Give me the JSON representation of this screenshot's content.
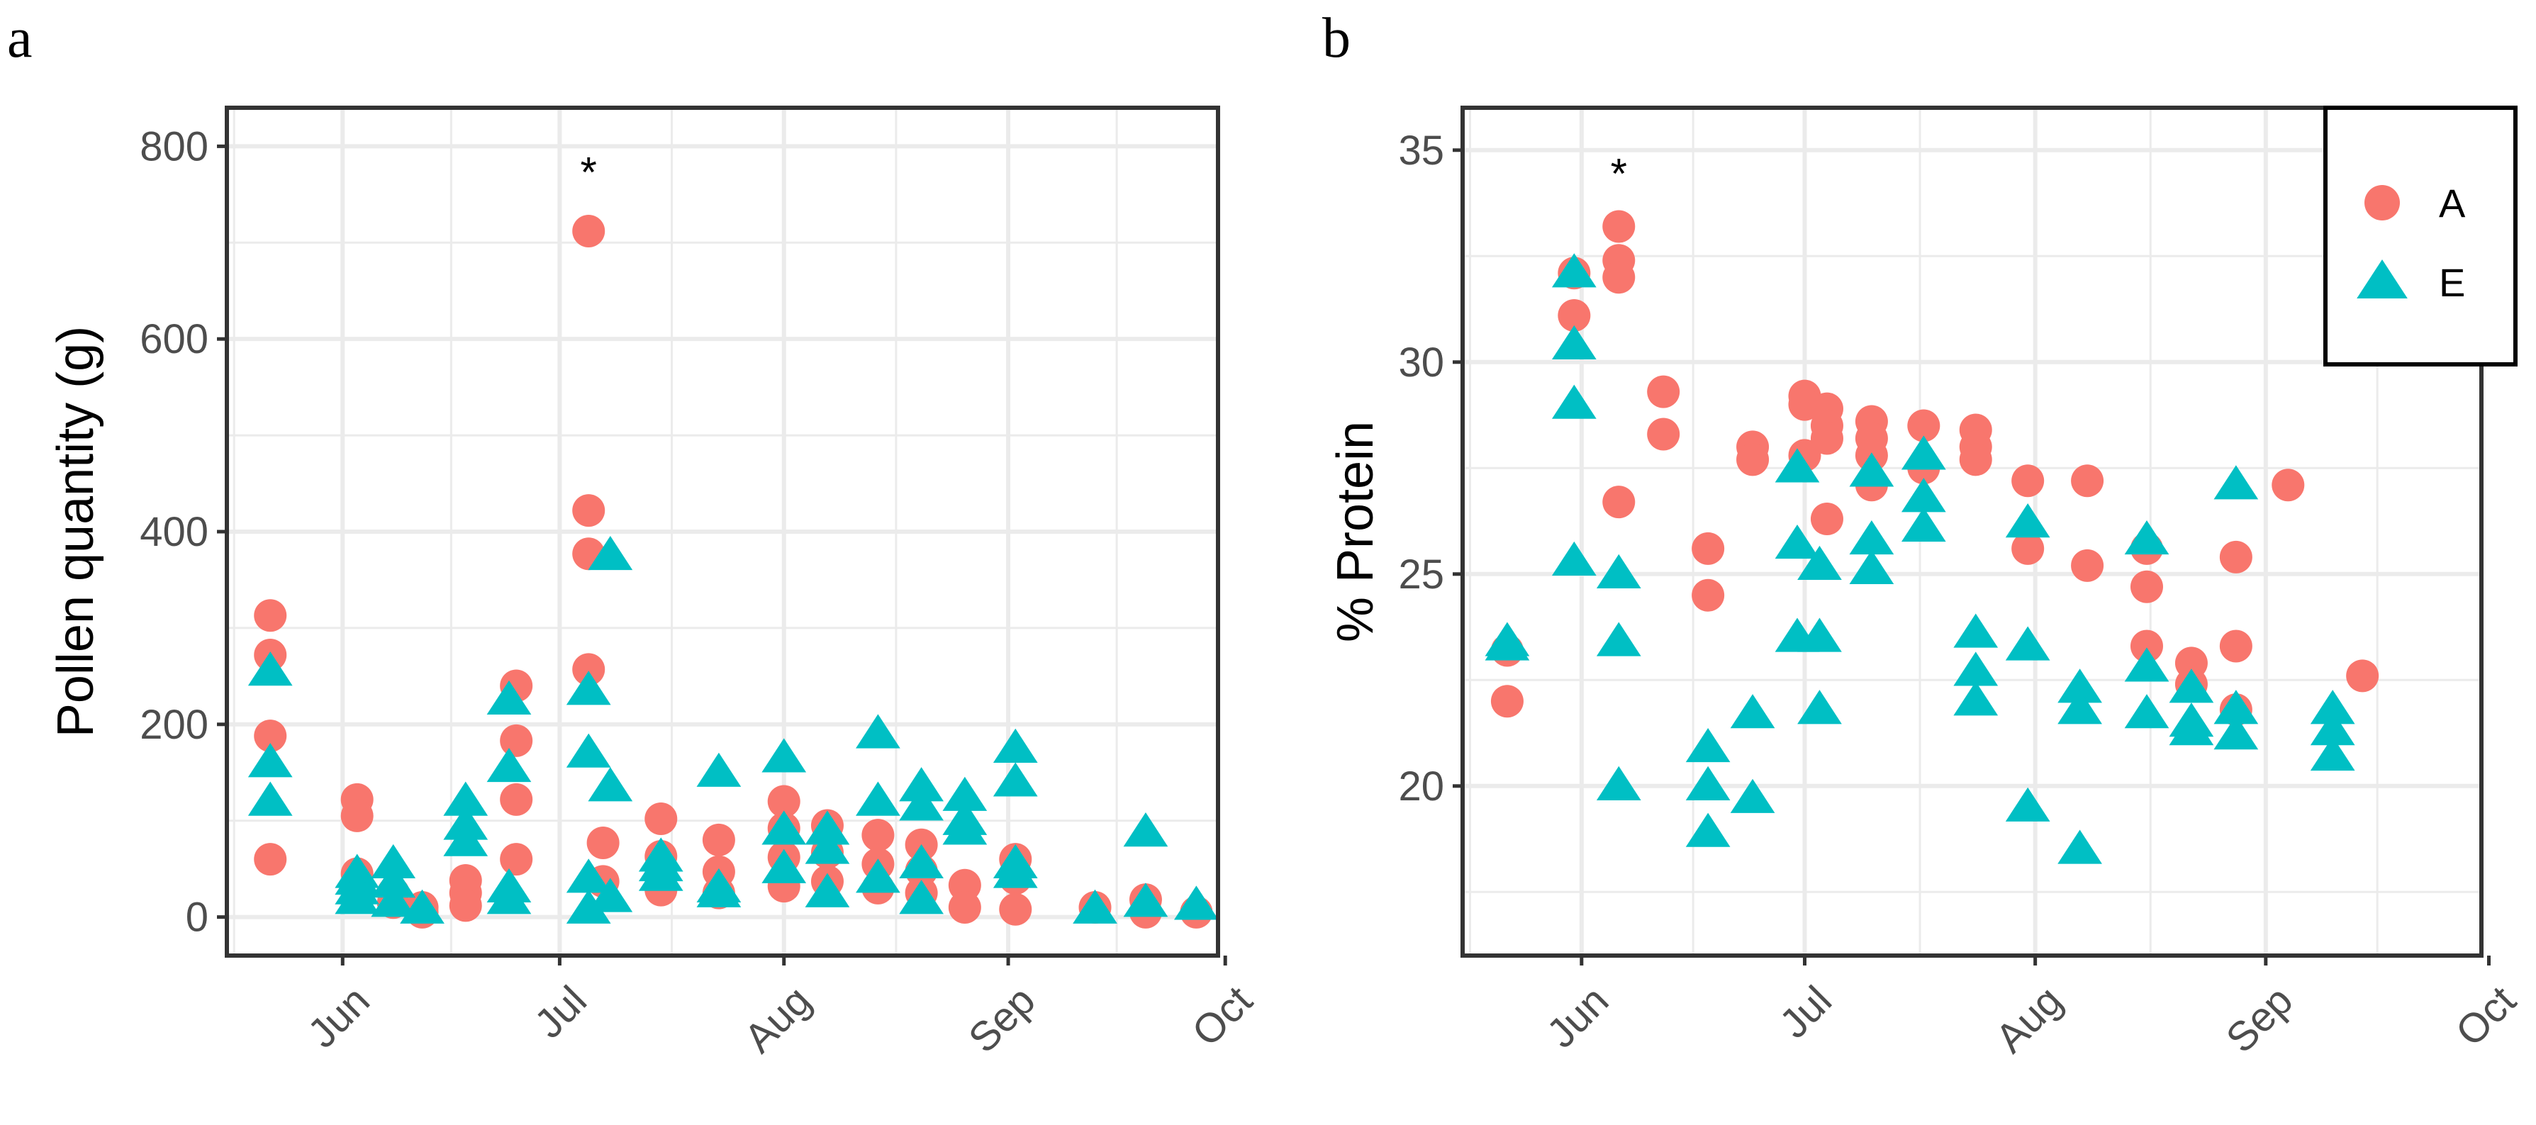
{
  "figure": {
    "panel_labels": [
      "a",
      "b"
    ]
  },
  "colors": {
    "A": "#F8766D",
    "E": "#00BFC4",
    "grid": "#ebebeb",
    "axis": "#333333",
    "tick_text": "#4d4d4d"
  },
  "chart_data": [
    {
      "type": "scatter",
      "panel": "a",
      "title": "",
      "xlabel": "",
      "ylabel": "Pollen quantity (g)",
      "x_unit": "day_of_year",
      "xlim": [
        136,
        273
      ],
      "ylim": [
        -40,
        840
      ],
      "x_ticks": [
        {
          "value": 152,
          "label": "Jun"
        },
        {
          "value": 182,
          "label": "Jul"
        },
        {
          "value": 213,
          "label": "Aug"
        },
        {
          "value": 244,
          "label": "Sep"
        },
        {
          "value": 274,
          "label": "Oct"
        }
      ],
      "y_ticks": [
        {
          "value": 0,
          "label": "0"
        },
        {
          "value": 200,
          "label": "200"
        },
        {
          "value": 400,
          "label": "400"
        },
        {
          "value": 600,
          "label": "600"
        },
        {
          "value": 800,
          "label": "800"
        }
      ],
      "annotations": [
        {
          "text": "*",
          "x": 186,
          "y": 780
        }
      ],
      "series": [
        {
          "name": "A",
          "marker": "circle",
          "points": [
            [
              142,
              313
            ],
            [
              142,
              272
            ],
            [
              142,
              188
            ],
            [
              142,
              60
            ],
            [
              154,
              122
            ],
            [
              154,
              105
            ],
            [
              154,
              45
            ],
            [
              154,
              30
            ],
            [
              159,
              25
            ],
            [
              159,
              15
            ],
            [
              163,
              10
            ],
            [
              163,
              5
            ],
            [
              169,
              38
            ],
            [
              169,
              25
            ],
            [
              169,
              12
            ],
            [
              176,
              240
            ],
            [
              176,
              183
            ],
            [
              176,
              122
            ],
            [
              176,
              60
            ],
            [
              186,
              712
            ],
            [
              186,
              422
            ],
            [
              186,
              377
            ],
            [
              186,
              257
            ],
            [
              188,
              77
            ],
            [
              188,
              37
            ],
            [
              196,
              102
            ],
            [
              196,
              63
            ],
            [
              196,
              28
            ],
            [
              204,
              80
            ],
            [
              204,
              47
            ],
            [
              204,
              25
            ],
            [
              213,
              120
            ],
            [
              213,
              92
            ],
            [
              213,
              62
            ],
            [
              213,
              32
            ],
            [
              219,
              95
            ],
            [
              219,
              67
            ],
            [
              219,
              37
            ],
            [
              226,
              85
            ],
            [
              226,
              55
            ],
            [
              226,
              30
            ],
            [
              232,
              75
            ],
            [
              232,
              48
            ],
            [
              232,
              25
            ],
            [
              238,
              33
            ],
            [
              238,
              10
            ],
            [
              245,
              60
            ],
            [
              245,
              40
            ],
            [
              245,
              8
            ],
            [
              256,
              10
            ],
            [
              263,
              18
            ],
            [
              263,
              5
            ],
            [
              270,
              5
            ]
          ]
        },
        {
          "name": "E",
          "marker": "triangle",
          "points": [
            [
              142,
              255
            ],
            [
              142,
              160
            ],
            [
              142,
              120
            ],
            [
              154,
              45
            ],
            [
              154,
              38
            ],
            [
              154,
              28
            ],
            [
              154,
              18
            ],
            [
              159,
              55
            ],
            [
              159,
              35
            ],
            [
              159,
              15
            ],
            [
              163,
              8
            ],
            [
              169,
              120
            ],
            [
              169,
              95
            ],
            [
              169,
              78
            ],
            [
              175,
              225
            ],
            [
              175,
              155
            ],
            [
              175,
              30
            ],
            [
              175,
              18
            ],
            [
              186,
              235
            ],
            [
              186,
              170
            ],
            [
              186,
              40
            ],
            [
              186,
              8
            ],
            [
              189,
              375
            ],
            [
              189,
              135
            ],
            [
              189,
              20
            ],
            [
              196,
              62
            ],
            [
              196,
              52
            ],
            [
              196,
              42
            ],
            [
              204,
              150
            ],
            [
              204,
              30
            ],
            [
              204,
              25
            ],
            [
              213,
              165
            ],
            [
              213,
              90
            ],
            [
              213,
              50
            ],
            [
              219,
              90
            ],
            [
              219,
              70
            ],
            [
              219,
              25
            ],
            [
              226,
              190
            ],
            [
              226,
              120
            ],
            [
              226,
              40
            ],
            [
              232,
              135
            ],
            [
              232,
              115
            ],
            [
              232,
              55
            ],
            [
              232,
              18
            ],
            [
              238,
              125
            ],
            [
              238,
              100
            ],
            [
              238,
              90
            ],
            [
              245,
              175
            ],
            [
              245,
              140
            ],
            [
              245,
              55
            ],
            [
              245,
              45
            ],
            [
              256,
              8
            ],
            [
              263,
              88
            ],
            [
              263,
              15
            ],
            [
              270,
              12
            ]
          ]
        }
      ]
    },
    {
      "type": "scatter",
      "panel": "b",
      "title": "",
      "xlabel": "",
      "ylabel": "% Protein",
      "x_unit": "day_of_year",
      "xlim": [
        136,
        273
      ],
      "ylim": [
        16.0,
        36.0
      ],
      "x_ticks": [
        {
          "value": 152,
          "label": "Jun"
        },
        {
          "value": 182,
          "label": "Jul"
        },
        {
          "value": 213,
          "label": "Aug"
        },
        {
          "value": 244,
          "label": "Sep"
        },
        {
          "value": 274,
          "label": "Oct"
        }
      ],
      "y_ticks": [
        {
          "value": 20,
          "label": "20"
        },
        {
          "value": 25,
          "label": "25"
        },
        {
          "value": 30,
          "label": "30"
        },
        {
          "value": 35,
          "label": "35"
        }
      ],
      "annotations": [
        {
          "text": "*",
          "x": 157,
          "y": 34.6
        }
      ],
      "legend": {
        "placement": "top-right",
        "entries": [
          {
            "label": "A",
            "series": "A"
          },
          {
            "label": "E",
            "series": "E"
          }
        ]
      },
      "series": [
        {
          "name": "A",
          "marker": "circle",
          "points": [
            [
              142,
              23.2
            ],
            [
              142,
              22.0
            ],
            [
              151,
              32.1
            ],
            [
              151,
              31.1
            ],
            [
              157,
              33.2
            ],
            [
              157,
              32.4
            ],
            [
              157,
              32.0
            ],
            [
              157,
              26.7
            ],
            [
              163,
              29.3
            ],
            [
              163,
              28.3
            ],
            [
              169,
              25.6
            ],
            [
              169,
              24.5
            ],
            [
              175,
              28.0
            ],
            [
              175,
              27.7
            ],
            [
              182,
              29.2
            ],
            [
              182,
              29.0
            ],
            [
              182,
              27.8
            ],
            [
              185,
              28.9
            ],
            [
              185,
              28.5
            ],
            [
              185,
              28.2
            ],
            [
              185,
              26.3
            ],
            [
              191,
              28.6
            ],
            [
              191,
              28.2
            ],
            [
              191,
              27.8
            ],
            [
              191,
              27.1
            ],
            [
              198,
              28.5
            ],
            [
              198,
              27.5
            ],
            [
              205,
              28.4
            ],
            [
              205,
              28.0
            ],
            [
              205,
              27.7
            ],
            [
              212,
              27.2
            ],
            [
              212,
              25.6
            ],
            [
              220,
              27.2
            ],
            [
              220,
              25.2
            ],
            [
              228,
              25.6
            ],
            [
              228,
              24.7
            ],
            [
              228,
              23.3
            ],
            [
              234,
              22.9
            ],
            [
              234,
              22.4
            ],
            [
              240,
              25.4
            ],
            [
              240,
              23.3
            ],
            [
              240,
              21.8
            ],
            [
              247,
              27.1
            ],
            [
              257,
              22.6
            ]
          ]
        },
        {
          "name": "E",
          "marker": "triangle",
          "points": [
            [
              142,
              23.4
            ],
            [
              142,
              23.3
            ],
            [
              151,
              32.1
            ],
            [
              151,
              30.4
            ],
            [
              151,
              29.0
            ],
            [
              151,
              25.3
            ],
            [
              157,
              25.0
            ],
            [
              157,
              23.4
            ],
            [
              157,
              20.0
            ],
            [
              169,
              20.9
            ],
            [
              169,
              20.0
            ],
            [
              169,
              18.9
            ],
            [
              175,
              21.7
            ],
            [
              175,
              19.7
            ],
            [
              181,
              27.5
            ],
            [
              181,
              25.7
            ],
            [
              181,
              23.5
            ],
            [
              184,
              25.2
            ],
            [
              184,
              23.5
            ],
            [
              184,
              21.8
            ],
            [
              191,
              27.4
            ],
            [
              191,
              25.8
            ],
            [
              191,
              25.1
            ],
            [
              198,
              27.8
            ],
            [
              198,
              26.8
            ],
            [
              198,
              26.1
            ],
            [
              205,
              23.6
            ],
            [
              205,
              22.7
            ],
            [
              205,
              22.0
            ],
            [
              212,
              26.2
            ],
            [
              212,
              23.3
            ],
            [
              212,
              19.5
            ],
            [
              219,
              22.3
            ],
            [
              219,
              21.8
            ],
            [
              219,
              18.5
            ],
            [
              228,
              25.8
            ],
            [
              228,
              22.8
            ],
            [
              228,
              21.7
            ],
            [
              234,
              22.3
            ],
            [
              234,
              21.5
            ],
            [
              234,
              21.3
            ],
            [
              240,
              27.1
            ],
            [
              240,
              21.8
            ],
            [
              240,
              21.2
            ],
            [
              253,
              21.8
            ],
            [
              253,
              21.3
            ],
            [
              253,
              20.7
            ]
          ]
        }
      ]
    }
  ]
}
